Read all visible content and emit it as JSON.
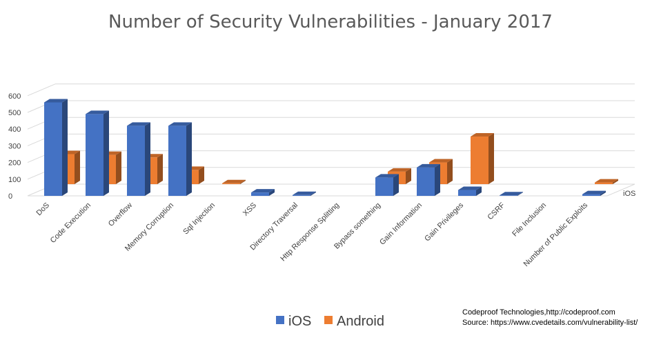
{
  "chart_data": {
    "type": "bar",
    "title": "Number of Security Vulnerabilities - January 2017",
    "categories": [
      "DoS",
      "Code Execution",
      "Overflow",
      "Memory Corruption",
      "Sql Injection",
      "XSS",
      "Directory Traversal",
      "Http Response Splitting",
      "Bypass something",
      "Gain Information",
      "Gain Privileges",
      "CSRF",
      "File Inclusion",
      "Number of Public Exploits"
    ],
    "series": [
      {
        "name": "iOS",
        "color": "#4472c4",
        "values": [
          560,
          490,
          420,
          420,
          0,
          20,
          5,
          0,
          110,
          170,
          35,
          3,
          0,
          10
        ]
      },
      {
        "name": "Android",
        "color": "#ed7d31",
        "values": [
          180,
          175,
          160,
          85,
          5,
          0,
          0,
          0,
          75,
          130,
          285,
          0,
          0,
          10
        ]
      }
    ],
    "y_ticks": [
      "0",
      "100",
      "200",
      "300",
      "400",
      "500",
      "600"
    ],
    "ylim": [
      0,
      600
    ],
    "depth_axis_label": "iOS",
    "legend_position": "bottom-center",
    "grid": true
  },
  "footnote": {
    "line1": "Codeproof Technologies,http://codeproof.com",
    "line2": "Source: https://www.cvedetails.com/vulnerability-list/"
  }
}
